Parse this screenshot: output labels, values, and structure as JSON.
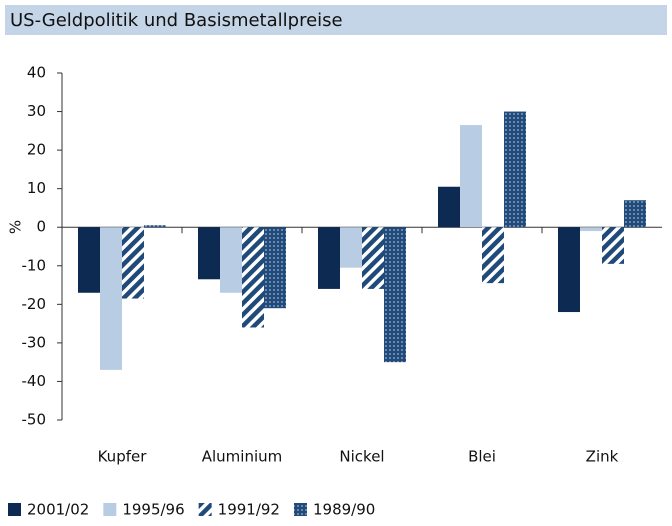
{
  "chart_data": {
    "type": "bar",
    "title": "US-Geldpolitik und Basismetallpreise",
    "y_label": "%",
    "categories": [
      "Kupfer",
      "Aluminium",
      "Nickel",
      "Blei",
      "Zink"
    ],
    "series": [
      {
        "name": "2001/02",
        "color": "#0d2a52",
        "pattern": "solid",
        "values": [
          -17,
          -13.5,
          -16,
          10.5,
          -22
        ]
      },
      {
        "name": "1995/96",
        "color": "#b8cde3",
        "pattern": "solid",
        "values": [
          -37,
          -17,
          -10.5,
          26.5,
          -1
        ]
      },
      {
        "name": "1991/92",
        "color": "#1f4a7a",
        "pattern": "diagonal",
        "values": [
          -18.5,
          -26,
          -16,
          -14.5,
          -9.5
        ]
      },
      {
        "name": "1989/90",
        "color": "#1f4a7a",
        "pattern": "crosshatch",
        "values": [
          0.5,
          -21,
          -35,
          30,
          7
        ]
      }
    ],
    "ylim": [
      -50,
      40
    ],
    "yticks": [
      -50,
      -40,
      -30,
      -20,
      -10,
      0,
      10,
      20,
      30,
      40
    ]
  }
}
